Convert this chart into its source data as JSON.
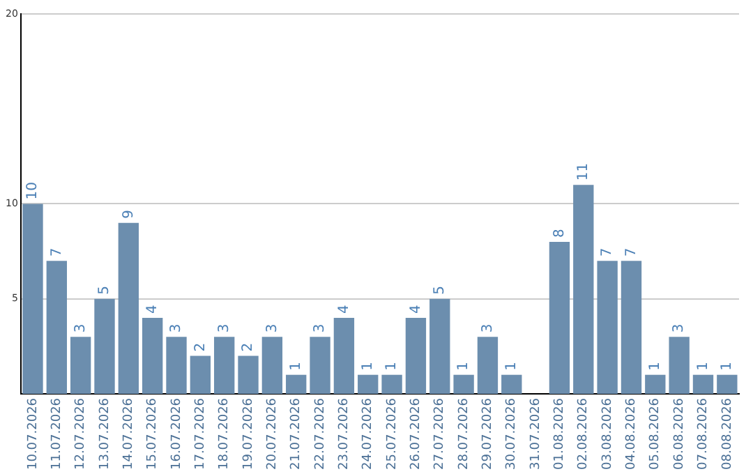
{
  "chart_data": {
    "type": "bar",
    "categories": [
      "10.07.2026",
      "11.07.2026",
      "12.07.2026",
      "13.07.2026",
      "14.07.2026",
      "15.07.2026",
      "16.07.2026",
      "17.07.2026",
      "18.07.2026",
      "19.07.2026",
      "20.07.2026",
      "21.07.2026",
      "22.07.2026",
      "23.07.2026",
      "24.07.2026",
      "25.07.2026",
      "26.07.2026",
      "27.07.2026",
      "28.07.2026",
      "29.07.2026",
      "30.07.2026",
      "31.07.2026",
      "01.08.2026",
      "02.08.2026",
      "03.08.2026",
      "04.08.2026",
      "05.08.2026",
      "06.08.2026",
      "07.08.2026",
      "08.08.2026"
    ],
    "values": [
      10,
      7,
      3,
      5,
      9,
      4,
      3,
      2,
      3,
      2,
      3,
      1,
      3,
      4,
      1,
      1,
      4,
      5,
      1,
      3,
      1,
      null,
      8,
      11,
      7,
      7,
      1,
      3,
      1,
      1
    ],
    "color": "#6c8eae",
    "ylim": [
      0,
      20
    ],
    "yticks": [
      5,
      10,
      20
    ],
    "grid": "y",
    "legend": false,
    "data_labels": true
  }
}
